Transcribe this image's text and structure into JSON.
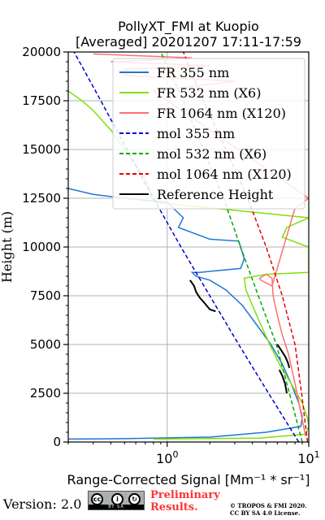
{
  "chart_data": {
    "type": "line",
    "title": "PollyXT_FMI at Kuopio",
    "subtitle": "[Averaged] 20201207 17:11-17:59",
    "xlabel": "Range-Corrected Signal [Mm⁻¹ * sr⁻¹]",
    "ylabel": "Height (m)",
    "xscale": "log",
    "xlim": [
      0.2,
      10
    ],
    "ylim": [
      0,
      20000
    ],
    "yticks": [
      0,
      2500,
      5000,
      7500,
      10000,
      12500,
      15000,
      17500,
      20000
    ],
    "xtick_labels": [
      "10^0",
      "10^1"
    ],
    "grid": true,
    "legend_position": "top-right",
    "series": [
      {
        "name": "FR 355 nm",
        "color": "#1f77d4",
        "style": "solid",
        "x": [
          0.2,
          0.5,
          2,
          5,
          8.8,
          9.0,
          8.5,
          7.5,
          6.5,
          5.4,
          4.3,
          3.4,
          2.6,
          2.0,
          1.6,
          1.5,
          1.7,
          3.3,
          3.5,
          3.2,
          2.0,
          1.2,
          1.3,
          1.1,
          1.0,
          0.7,
          0.5,
          0.3,
          0.2
        ],
        "y": [
          150,
          170,
          250,
          500,
          800,
          1300,
          2000,
          3000,
          4000,
          5000,
          6000,
          7000,
          7800,
          8300,
          8500,
          8700,
          8700,
          8900,
          9400,
          10300,
          10400,
          11000,
          11500,
          12000,
          12300,
          12400,
          12500,
          12700,
          13000
        ]
      },
      {
        "name": "FR 532 nm (X6)",
        "color": "#7ee00a",
        "style": "solid",
        "x": [
          0.8,
          4.5,
          9.5,
          10,
          9.8,
          9.0,
          7.5,
          6.2,
          5.3,
          4.6,
          4.0,
          3.6,
          3.5,
          5.0,
          10,
          10,
          6.5,
          7.0,
          10,
          0.8,
          0.7,
          0.5,
          0.4,
          0.3,
          0.25,
          0.2
        ],
        "y": [
          150,
          200,
          400,
          800,
          1200,
          2000,
          3000,
          4000,
          5000,
          6000,
          7000,
          7800,
          8400,
          8600,
          8700,
          10000,
          10500,
          11000,
          11500,
          12300,
          13500,
          15000,
          16000,
          17000,
          17500,
          18000
        ]
      },
      {
        "name": "FR 1064 nm (X120)",
        "color": "#ff6f6f",
        "style": "solid",
        "x": [
          9.5,
          8.8,
          8.0,
          7.2,
          6.5,
          6.0,
          5.6,
          5.5,
          5.0,
          4.5,
          4.6,
          5.5,
          8.0,
          10,
          0.8,
          3.0,
          0.5,
          0.5,
          2.0,
          0.4,
          1.5,
          0.3
        ],
        "y": [
          300,
          1500,
          3000,
          4500,
          5500,
          6500,
          7500,
          8400,
          8600,
          8400,
          8300,
          8000,
          12000,
          12500,
          18000,
          18500,
          18800,
          19100,
          19300,
          19500,
          19700,
          19900
        ]
      },
      {
        "name": "mol 355 nm",
        "color": "#0000cc",
        "style": "dashed",
        "x": [
          8.5,
          5.2,
          3.2,
          2.0,
          1.25,
          0.8,
          0.52,
          0.34,
          0.22
        ],
        "y": [
          0,
          2500,
          5000,
          7500,
          10000,
          12500,
          15000,
          17500,
          20000
        ]
      },
      {
        "name": "mol 532 nm (X6)",
        "color": "#00aa00",
        "style": "dashed",
        "x": [
          9.0,
          7.3,
          5.9,
          4.4,
          3.3,
          2.5,
          1.8,
          1.3,
          0.9
        ],
        "y": [
          0,
          2500,
          5000,
          7500,
          10000,
          12500,
          15000,
          17500,
          20000
        ]
      },
      {
        "name": "mol 1064 nm (X120)",
        "color": "#e60000",
        "style": "dashed",
        "x": [
          9.8,
          8.9,
          8.0,
          6.5,
          5.0,
          3.7,
          2.6,
          1.8,
          1.3
        ],
        "y": [
          0,
          2500,
          5000,
          7500,
          10000,
          12500,
          15000,
          17500,
          20000
        ]
      },
      {
        "name": "Reference Height",
        "color": "#000000",
        "style": "solid",
        "x": [
          1.45,
          1.55,
          1.6,
          1.7,
          1.85,
          2.0,
          2.2
        ],
        "y": [
          8300,
          8000,
          7700,
          7400,
          7100,
          6800,
          6700
        ]
      },
      {
        "name": "",
        "color": "#000000",
        "style": "solid",
        "x": [
          6.0,
          6.4,
          6.8,
          7.1,
          7.3
        ],
        "y": [
          5000,
          4700,
          4400,
          4100,
          3800
        ]
      },
      {
        "name": "",
        "color": "#000000",
        "style": "solid",
        "x": [
          6.2,
          6.5,
          6.8,
          7.0
        ],
        "y": [
          3700,
          3400,
          3000,
          2500
        ]
      }
    ]
  },
  "footer": {
    "version": "Version: 2.0",
    "cc_icons": [
      "cc-icon",
      "by-icon",
      "sa-icon"
    ],
    "cc_strip": "BY  SA",
    "preliminary_line1": "Preliminary",
    "preliminary_line2": "Results.",
    "copyright_line1": "© TROPOS & FMI 2020.",
    "copyright_line2": "CC BY SA 4.0 License."
  }
}
